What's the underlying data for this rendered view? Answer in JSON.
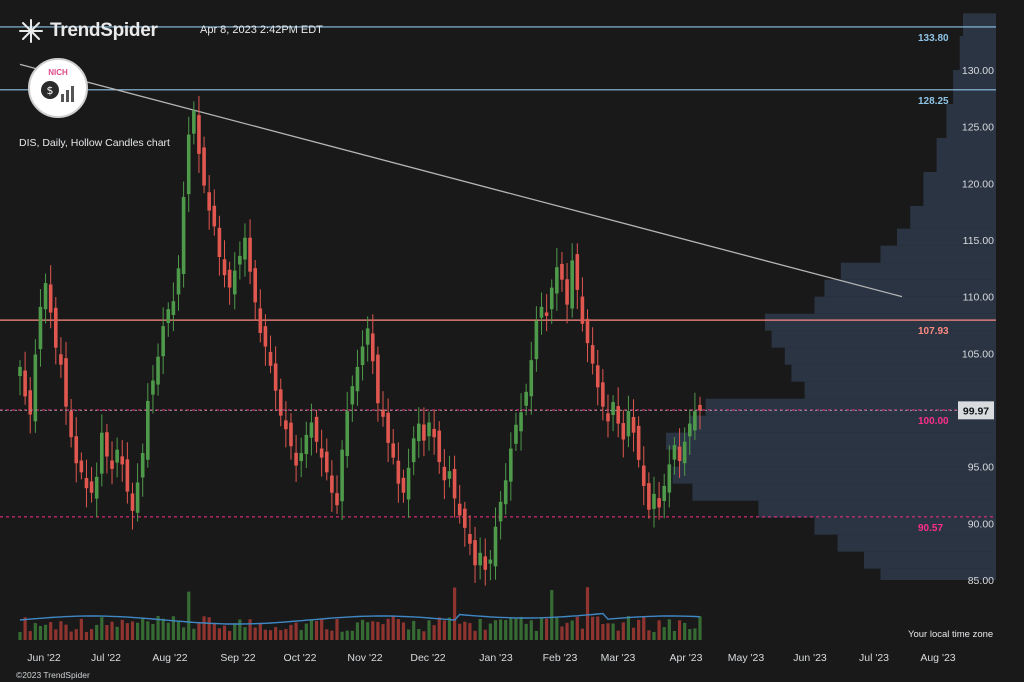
{
  "header": {
    "brand": "TrendSpider",
    "timestamp": "Apr 8, 2023 2:42PM EDT",
    "chart_label": "DIS, Daily, Hollow Candles chart"
  },
  "footer": {
    "copyright": "©2023 TrendSpider",
    "timezone": "Your local time zone"
  },
  "badge": {
    "text": "NICH",
    "icon": "dollar-coin-icon"
  },
  "colors": {
    "background": "#191919",
    "up": "#4e9a4a",
    "down": "#e0574f",
    "resistance": "#ff8a82",
    "level_blue": "#8fc3e6",
    "level_pink": "#ff2e8a",
    "trendline": "#b5b5b5",
    "volume_profile": "#2b3646",
    "volume_ma": "#3f88c5"
  },
  "chart_data": {
    "type": "candlestick",
    "symbol": "DIS",
    "ylim": [
      82.5,
      135.0
    ],
    "y_ticks": [
      85.0,
      90.0,
      95.0,
      100.0,
      105.0,
      110.0,
      115.0,
      120.0,
      125.0,
      130.0
    ],
    "x_labels": [
      "Jun '22",
      "Jul '22",
      "Aug '22",
      "Sep '22",
      "Oct '22",
      "Nov '22",
      "Dec '22",
      "Jan '23",
      "Feb '23",
      "Mar '23",
      "Apr '23",
      "May '23",
      "Jun '23",
      "Jul '23",
      "Aug '23"
    ],
    "current_price": "99.97",
    "levels": [
      {
        "value": 133.8,
        "label": "133.80",
        "color": "#8fc3e6",
        "style": "solid"
      },
      {
        "value": 128.25,
        "label": "128.25",
        "color": "#8fc3e6",
        "style": "solid"
      },
      {
        "value": 107.93,
        "label": "107.93",
        "color": "#ff8a82",
        "style": "solid"
      },
      {
        "value": 100.0,
        "label": "100.00",
        "color": "#ff2e8a",
        "style": "dotted"
      },
      {
        "value": 90.57,
        "label": "90.57",
        "color": "#ff2e8a",
        "style": "dotted"
      }
    ],
    "trendline": {
      "from": [
        "May '22",
        130.5
      ],
      "to": [
        "Aug '23",
        110.0
      ]
    },
    "candle_closes": [
      103.8,
      101.2,
      99.6,
      104.9,
      109.1,
      111.2,
      108.6,
      105.5,
      104.0,
      100.3,
      97.6,
      95.3,
      94.5,
      93.1,
      92.7,
      94.1,
      98.0,
      95.9,
      94.8,
      96.5,
      95.2,
      92.8,
      91.1,
      93.6,
      96.2,
      100.8,
      102.6,
      104.7,
      107.4,
      108.9,
      109.6,
      112.5,
      118.8,
      124.3,
      126.4,
      122.6,
      119.8,
      117.6,
      116.2,
      113.5,
      111.9,
      110.8,
      112.3,
      113.6,
      115.2,
      112.2,
      109.5,
      106.8,
      105.6,
      103.9,
      101.7,
      99.5,
      98.3,
      96.8,
      95.1,
      96.2,
      97.8,
      98.9,
      97.2,
      95.8,
      94.5,
      92.7,
      91.6,
      96.5,
      99.9,
      102.1,
      103.8,
      105.6,
      107.2,
      104.3,
      100.6,
      99.4,
      97.1,
      95.8,
      93.5,
      92.7,
      94.9,
      97.5,
      98.8,
      97.3,
      98.9,
      97.6,
      95.4,
      93.8,
      94.6,
      92.2,
      90.7,
      89.6,
      88.2,
      86.3,
      87.4,
      85.9,
      86.8,
      89.7,
      91.9,
      93.8,
      96.6,
      98.7,
      99.8,
      101.6,
      104.4,
      107.9,
      109.1,
      108.3,
      110.8,
      112.6,
      111.5,
      109.3,
      113.2,
      110.6,
      107.6,
      105.9,
      104.1,
      102.0,
      100.3,
      99.0,
      100.7,
      98.8,
      97.4,
      99.9,
      98.0,
      95.6,
      93.3,
      91.2,
      92.6,
      91.4,
      93.3,
      95.2,
      96.9,
      95.5,
      97.2,
      98.8,
      99.9,
      99.97
    ],
    "volume_profile_levels": [
      {
        "price_low": 85.0,
        "price_high": 86.0,
        "volume": 0.35
      },
      {
        "price_low": 86.0,
        "price_high": 87.5,
        "volume": 0.4
      },
      {
        "price_low": 87.5,
        "price_high": 89.0,
        "volume": 0.48
      },
      {
        "price_low": 89.0,
        "price_high": 90.5,
        "volume": 0.55
      },
      {
        "price_low": 90.5,
        "price_high": 92.0,
        "volume": 0.72
      },
      {
        "price_low": 92.0,
        "price_high": 93.5,
        "volume": 0.92
      },
      {
        "price_low": 93.5,
        "price_high": 95.0,
        "volume": 0.98
      },
      {
        "price_low": 95.0,
        "price_high": 96.5,
        "volume": 0.96
      },
      {
        "price_low": 96.5,
        "price_high": 98.0,
        "volume": 1.0
      },
      {
        "price_low": 98.0,
        "price_high": 99.5,
        "volume": 0.93
      },
      {
        "price_low": 99.5,
        "price_high": 101.0,
        "volume": 0.88
      },
      {
        "price_low": 101.0,
        "price_high": 102.5,
        "volume": 0.58
      },
      {
        "price_low": 102.5,
        "price_high": 104.0,
        "volume": 0.62
      },
      {
        "price_low": 104.0,
        "price_high": 105.5,
        "volume": 0.64
      },
      {
        "price_low": 105.5,
        "price_high": 107.0,
        "volume": 0.68
      },
      {
        "price_low": 107.0,
        "price_high": 108.5,
        "volume": 0.7
      },
      {
        "price_low": 108.5,
        "price_high": 110.0,
        "volume": 0.55
      },
      {
        "price_low": 110.0,
        "price_high": 111.5,
        "volume": 0.52
      },
      {
        "price_low": 111.5,
        "price_high": 113.0,
        "volume": 0.47
      },
      {
        "price_low": 113.0,
        "price_high": 114.5,
        "volume": 0.35
      },
      {
        "price_low": 114.5,
        "price_high": 116.0,
        "volume": 0.3
      },
      {
        "price_low": 116.0,
        "price_high": 118.0,
        "volume": 0.26
      },
      {
        "price_low": 118.0,
        "price_high": 121.0,
        "volume": 0.22
      },
      {
        "price_low": 121.0,
        "price_high": 124.0,
        "volume": 0.18
      },
      {
        "price_low": 124.0,
        "price_high": 127.0,
        "volume": 0.15
      },
      {
        "price_low": 127.0,
        "price_high": 130.0,
        "volume": 0.13
      },
      {
        "price_low": 130.0,
        "price_high": 133.0,
        "volume": 0.11
      },
      {
        "price_low": 133.0,
        "price_high": 135.0,
        "volume": 0.1
      }
    ]
  }
}
